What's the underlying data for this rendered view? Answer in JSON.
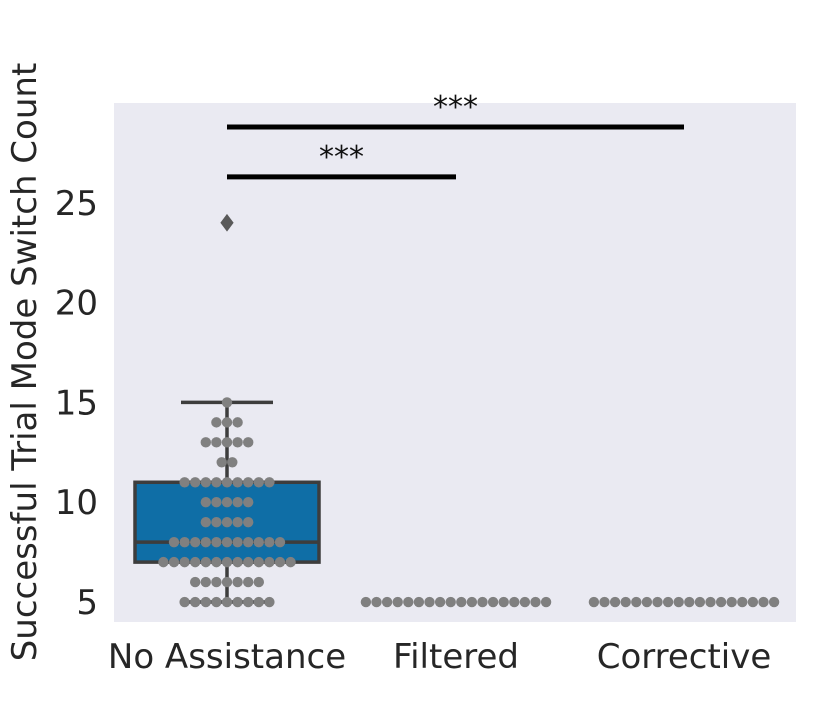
{
  "chart_data": {
    "type": "box",
    "ylabel": "Successful Trial Mode Switch Count",
    "xlabel": "",
    "ylim": [
      4.0,
      30.0
    ],
    "yticks": [
      5,
      10,
      15,
      20,
      25
    ],
    "grid": false,
    "categories": [
      "No Assistance",
      "Filtered",
      "Corrective"
    ],
    "box_color": "#0f6ea6",
    "point_color": "#808080",
    "background_color": "#eaeaf2",
    "boxes": [
      {
        "category": "No Assistance",
        "q1": 7,
        "median": 8,
        "q3": 11,
        "whisker_low": 5,
        "whisker_high": 15,
        "outliers": [
          24
        ]
      },
      {
        "category": "Filtered",
        "q1": 5,
        "median": 5,
        "q3": 5,
        "whisker_low": 5,
        "whisker_high": 5,
        "outliers": []
      },
      {
        "category": "Corrective",
        "q1": 5,
        "median": 5,
        "q3": 5,
        "whisker_low": 5,
        "whisker_high": 5,
        "outliers": []
      }
    ],
    "swarm": [
      {
        "category": "No Assistance",
        "counts": [
          {
            "value": 5,
            "count": 9
          },
          {
            "value": 6,
            "count": 7
          },
          {
            "value": 7,
            "count": 13
          },
          {
            "value": 8,
            "count": 11
          },
          {
            "value": 9,
            "count": 5
          },
          {
            "value": 10,
            "count": 5
          },
          {
            "value": 11,
            "count": 9
          },
          {
            "value": 12,
            "count": 2
          },
          {
            "value": 13,
            "count": 5
          },
          {
            "value": 14,
            "count": 3
          },
          {
            "value": 15,
            "count": 1
          }
        ]
      },
      {
        "category": "Filtered",
        "counts": [
          {
            "value": 5,
            "count": 18
          }
        ]
      },
      {
        "category": "Corrective",
        "counts": [
          {
            "value": 5,
            "count": 18
          }
        ]
      }
    ],
    "annotations": [
      {
        "from": "No Assistance",
        "to": "Filtered",
        "y": 26.3,
        "text": "***"
      },
      {
        "from": "No Assistance",
        "to": "Corrective",
        "y": 28.8,
        "text": "***"
      }
    ]
  }
}
